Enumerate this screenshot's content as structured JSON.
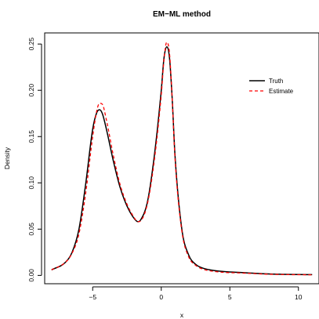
{
  "chart_data": {
    "type": "line",
    "title": "EM−ML method",
    "xlabel": "x",
    "ylabel": "Density",
    "xlim": [
      -8.5,
      11.5
    ],
    "ylim": [
      -0.009,
      0.262
    ],
    "x_ticks": [
      -5,
      0,
      5,
      10
    ],
    "x_tick_labels": [
      "−5",
      "0",
      "5",
      "10"
    ],
    "y_ticks": [
      0.0,
      0.05,
      0.1,
      0.15,
      0.2,
      0.25
    ],
    "y_tick_labels": [
      "0.00",
      "0.05",
      "0.10",
      "0.15",
      "0.20",
      "0.25"
    ],
    "grid": false,
    "legend_position": "top-right",
    "series": [
      {
        "name": "Truth",
        "color": "#000000",
        "dash": "solid",
        "x": [
          -8.0,
          -7.0,
          -6.5,
          -6.0,
          -5.5,
          -5.0,
          -4.7,
          -4.5,
          -4.3,
          -4.0,
          -3.5,
          -3.0,
          -2.5,
          -2.0,
          -1.7,
          -1.5,
          -1.0,
          -0.5,
          0.0,
          0.2,
          0.4,
          0.6,
          0.8,
          1.0,
          1.5,
          2.0,
          2.5,
          3.0,
          4.0,
          6.0,
          8.0,
          11.0
        ],
        "values": [
          0.006,
          0.014,
          0.025,
          0.05,
          0.1,
          0.158,
          0.176,
          0.179,
          0.175,
          0.158,
          0.124,
          0.095,
          0.075,
          0.062,
          0.058,
          0.06,
          0.08,
          0.13,
          0.2,
          0.235,
          0.247,
          0.235,
          0.19,
          0.13,
          0.05,
          0.022,
          0.012,
          0.008,
          0.005,
          0.003,
          0.0015,
          0.0008
        ]
      },
      {
        "name": "Estimate",
        "color": "#ff0000",
        "dash": "dashed",
        "x": [
          -8.0,
          -7.0,
          -6.5,
          -6.0,
          -5.5,
          -5.0,
          -4.7,
          -4.5,
          -4.3,
          -4.0,
          -3.5,
          -3.0,
          -2.5,
          -2.0,
          -1.7,
          -1.5,
          -1.0,
          -0.5,
          0.0,
          0.2,
          0.4,
          0.6,
          0.8,
          1.0,
          1.5,
          2.0,
          2.5,
          3.0,
          4.0,
          6.0,
          8.0,
          11.0
        ],
        "values": [
          0.006,
          0.014,
          0.024,
          0.045,
          0.09,
          0.15,
          0.178,
          0.186,
          0.185,
          0.168,
          0.13,
          0.098,
          0.077,
          0.063,
          0.058,
          0.059,
          0.078,
          0.125,
          0.195,
          0.233,
          0.252,
          0.24,
          0.19,
          0.127,
          0.048,
          0.02,
          0.011,
          0.007,
          0.004,
          0.0025,
          0.0012,
          0.0006
        ]
      }
    ]
  }
}
